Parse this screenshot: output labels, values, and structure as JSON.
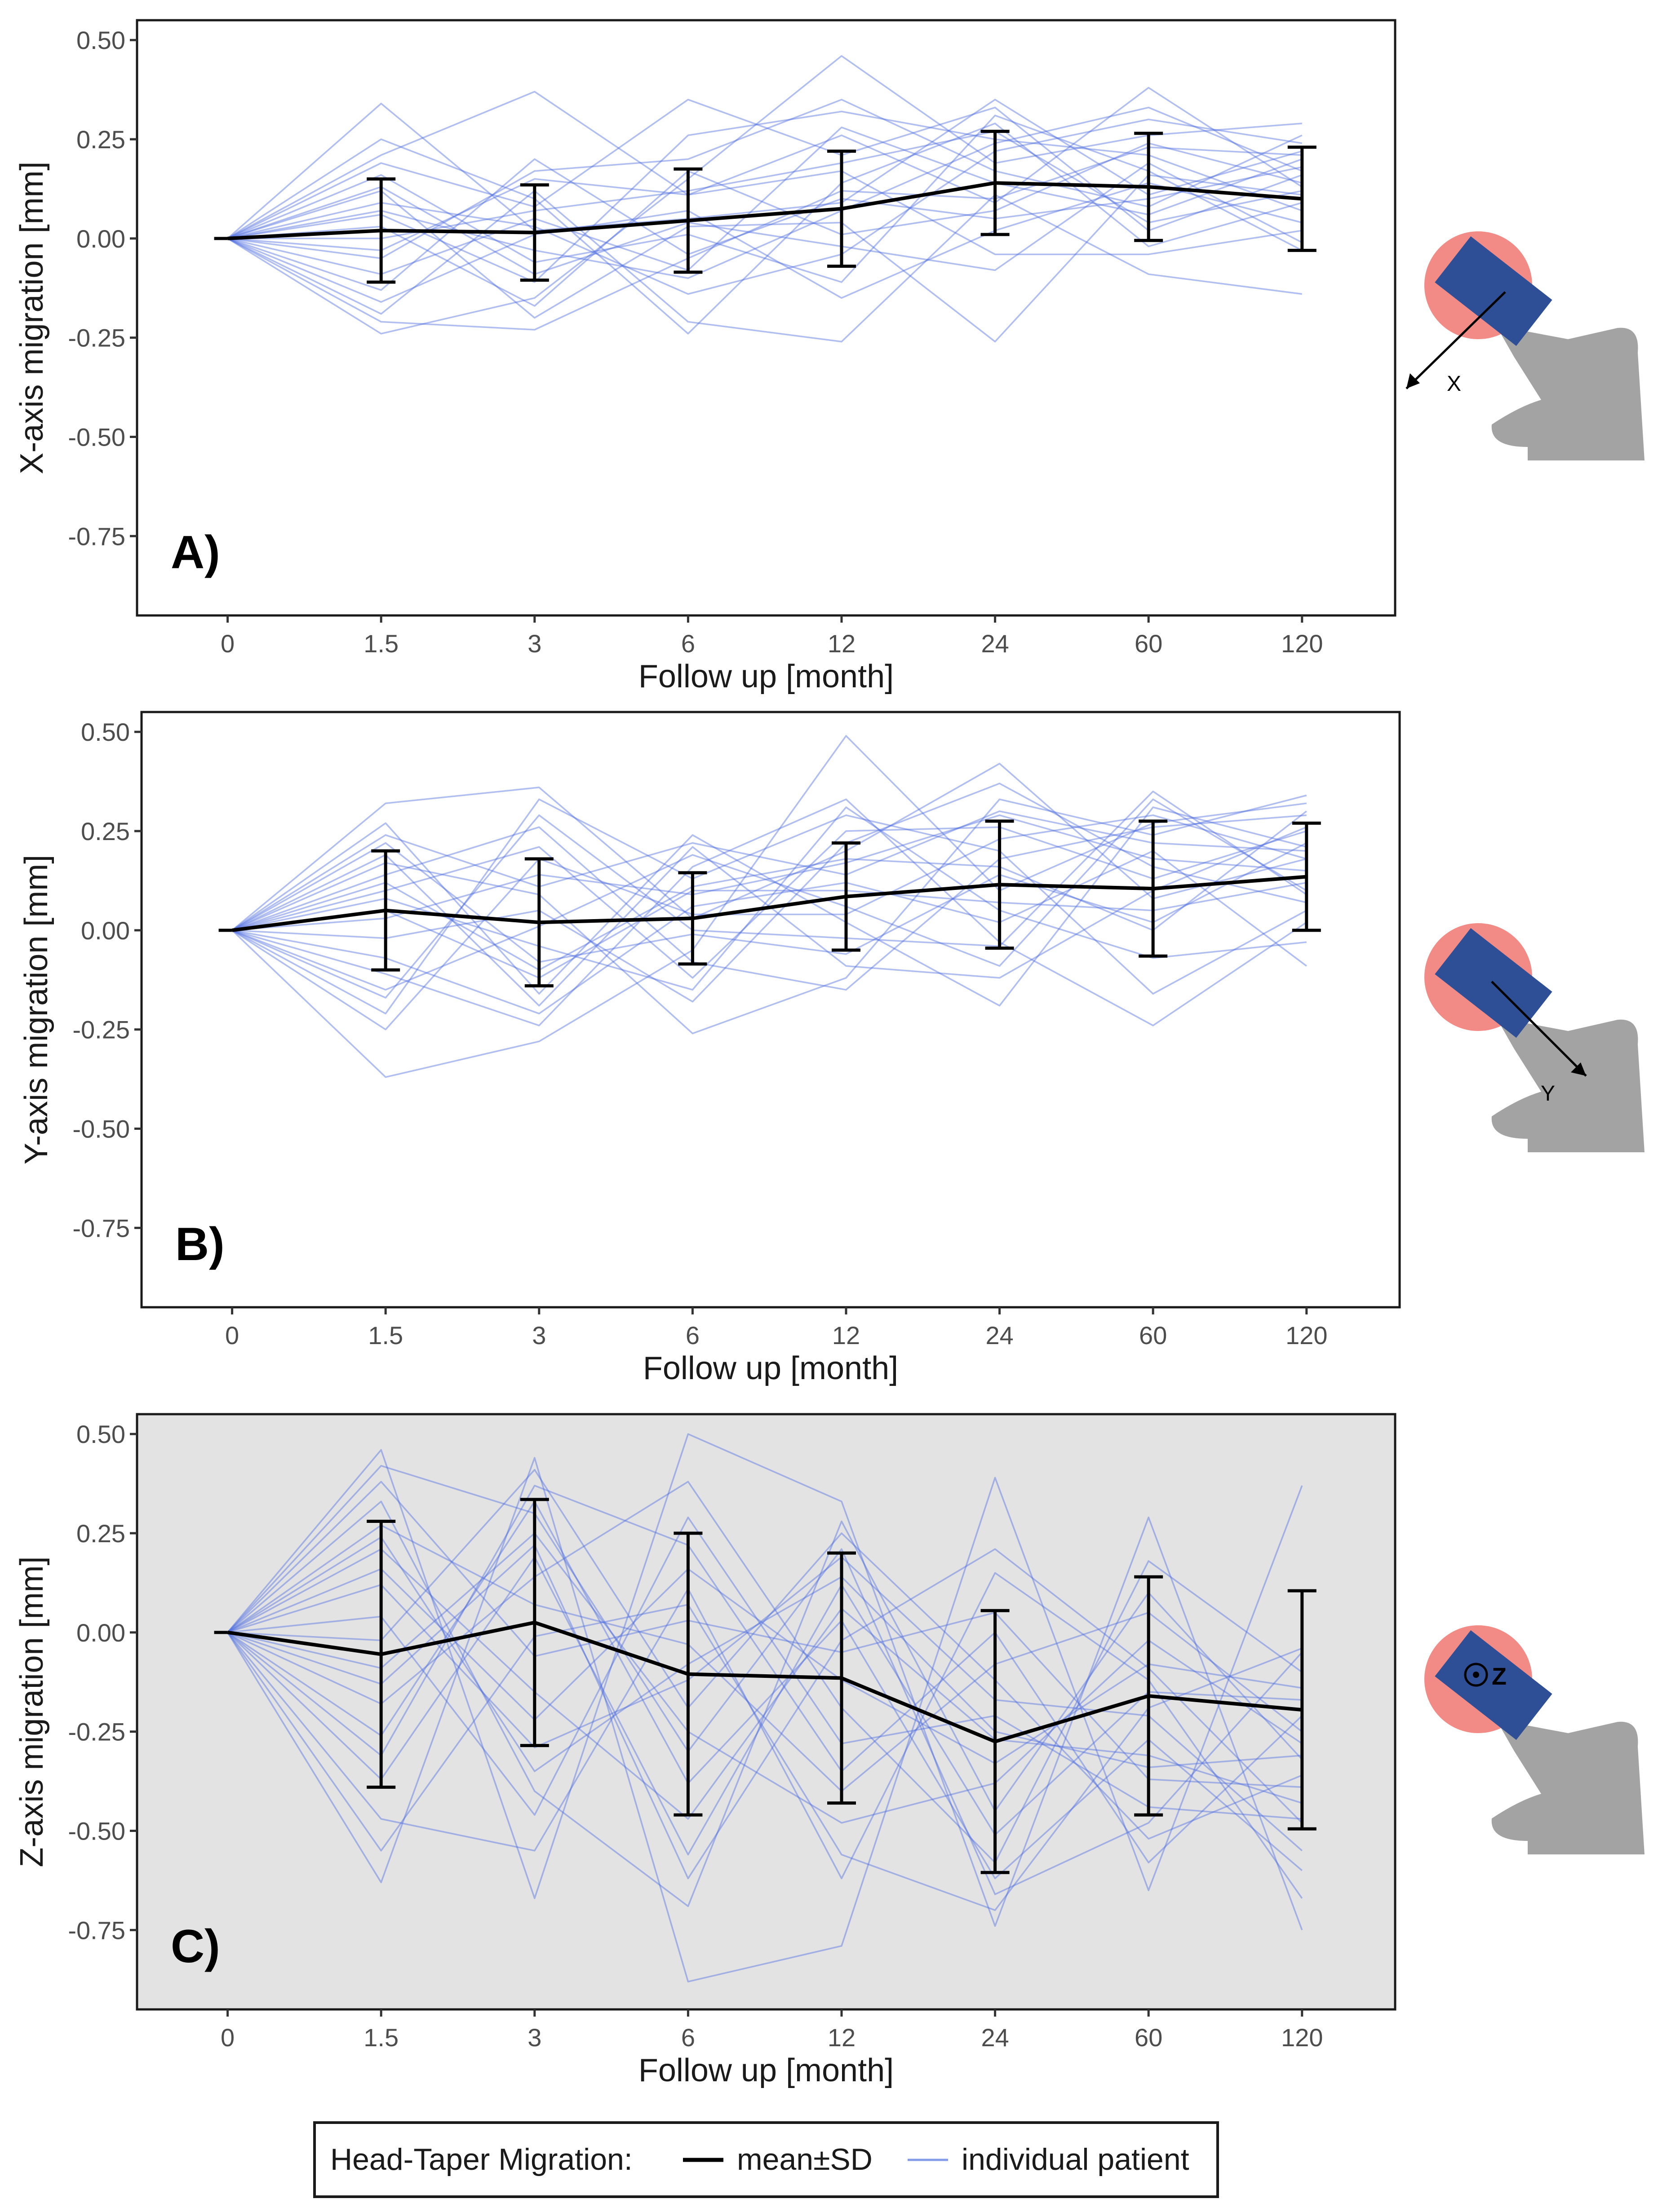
{
  "colors": {
    "mean_line": "#000000",
    "individual_line": "#4f6fe0",
    "panel_c_background": "#e3e3e3",
    "head_circle": "#f28b86",
    "taper_rect": "#2e4f96",
    "stem": "#a3a3a3"
  },
  "legend": {
    "title": "Head-Taper Migration:",
    "mean_label": "mean±SD",
    "individual_label": "individual patient"
  },
  "chart_data": [
    {
      "type": "line",
      "panel_label": "A)",
      "xlabel": "Follow up [month]",
      "ylabel": "X-axis migration [mm]",
      "categories": [
        "0",
        "1.5",
        "3",
        "6",
        "12",
        "24",
        "60",
        "120"
      ],
      "y_ticks": [
        "0.50",
        "0.25",
        "0.00",
        "-0.25",
        "-0.50",
        "-0.75"
      ],
      "ylim": [
        -0.95,
        0.55
      ],
      "background": "white",
      "axis_icon": "X",
      "series": [
        {
          "name": "mean±SD",
          "values": [
            0.0,
            0.02,
            0.015,
            0.045,
            0.075,
            0.14,
            0.13,
            0.1
          ],
          "sd": [
            0.0,
            0.13,
            0.12,
            0.13,
            0.145,
            0.13,
            0.135,
            0.13
          ]
        }
      ],
      "individual_patients": [
        [
          0,
          0.34,
          0.02,
          0.05,
          0.09,
          0.35,
          0.11,
          0.22
        ],
        [
          0,
          0.21,
          0.37,
          0.11,
          0.26,
          0.09,
          0.38,
          0.13
        ],
        [
          0,
          -0.24,
          -0.15,
          0.15,
          0.46,
          0.19,
          0.26,
          0.29
        ],
        [
          0,
          0.19,
          0.08,
          0.35,
          0.21,
          0.33,
          0.02,
          0.16
        ],
        [
          0,
          -0.19,
          0.12,
          -0.21,
          -0.26,
          0.11,
          -0.09,
          -0.14
        ],
        [
          0,
          0.12,
          -0.2,
          0.03,
          0.04,
          -0.26,
          0.16,
          0.11
        ],
        [
          0,
          -0.13,
          0.2,
          -0.04,
          0.1,
          0.05,
          0.1,
          0.18
        ],
        [
          0,
          0.06,
          -0.11,
          0.26,
          0.32,
          0.25,
          0.21,
          0.07
        ],
        [
          0,
          0.09,
          0.03,
          -0.14,
          -0.04,
          0.22,
          0.3,
          0.24
        ],
        [
          0,
          -0.03,
          0.15,
          0.11,
          0.17,
          -0.04,
          -0.04,
          0.02
        ],
        [
          0,
          0.16,
          -0.06,
          0.01,
          -0.11,
          0.31,
          0.17,
          -0.03
        ],
        [
          0,
          -0.09,
          0.05,
          -0.08,
          0.28,
          0.14,
          0.06,
          0.2
        ],
        [
          0,
          0.03,
          -0.17,
          0.17,
          0.01,
          0.07,
          0.24,
          0.14
        ],
        [
          0,
          0.25,
          0.1,
          -0.24,
          0.14,
          0.29,
          -0.02,
          0.09
        ],
        [
          0,
          -0.16,
          0.01,
          0.07,
          -0.15,
          0.02,
          0.14,
          0.04
        ],
        [
          0,
          0.07,
          -0.03,
          -0.1,
          0.07,
          0.24,
          0.33,
          0.17
        ],
        [
          0,
          -0.05,
          0.17,
          0.2,
          0.35,
          0.17,
          0.08,
          0.26
        ],
        [
          0,
          0.13,
          -0.09,
          0.04,
          -0.02,
          -0.08,
          0.19,
          -0.01
        ],
        [
          0,
          0.0,
          0.07,
          0.12,
          0.19,
          0.27,
          0.04,
          0.12
        ],
        [
          0,
          -0.21,
          -0.23,
          -0.05,
          0.12,
          0.1,
          0.23,
          0.21
        ]
      ]
    },
    {
      "type": "line",
      "panel_label": "B)",
      "xlabel": "Follow up [month]",
      "ylabel": "Y-axis migration [mm]",
      "categories": [
        "0",
        "1.5",
        "3",
        "6",
        "12",
        "24",
        "60",
        "120"
      ],
      "y_ticks": [
        "0.50",
        "0.25",
        "0.00",
        "-0.25",
        "-0.50",
        "-0.75"
      ],
      "ylim": [
        -0.95,
        0.55
      ],
      "background": "white",
      "axis_icon": "Y",
      "series": [
        {
          "name": "mean±SD",
          "values": [
            0.0,
            0.05,
            0.02,
            0.03,
            0.085,
            0.115,
            0.105,
            0.135
          ],
          "sd": [
            0.0,
            0.15,
            0.16,
            0.115,
            0.135,
            0.16,
            0.17,
            0.135
          ]
        }
      ],
      "individual_patients": [
        [
          0,
          -0.37,
          -0.28,
          -0.05,
          0.49,
          0.1,
          0.27,
          0.32
        ],
        [
          0,
          0.32,
          0.36,
          0.03,
          0.2,
          0.42,
          0.08,
          0.18
        ],
        [
          0,
          0.27,
          -0.16,
          0.24,
          0.02,
          -0.19,
          0.31,
          0.21
        ],
        [
          0,
          -0.21,
          0.33,
          0.13,
          0.29,
          0.2,
          -0.16,
          0.05
        ],
        [
          0,
          0.17,
          0.09,
          -0.26,
          -0.12,
          0.33,
          0.24,
          0.34
        ],
        [
          0,
          -0.07,
          -0.21,
          0.06,
          0.12,
          0.02,
          0.2,
          -0.09
        ],
        [
          0,
          0.1,
          0.21,
          -0.12,
          0.25,
          0.26,
          0.13,
          0.25
        ],
        [
          0,
          -0.15,
          0.01,
          0.19,
          0.06,
          -0.09,
          0.33,
          0.1
        ],
        [
          0,
          0.22,
          -0.08,
          -0.01,
          -0.06,
          0.14,
          0.02,
          0.22
        ],
        [
          0,
          0.03,
          0.14,
          0.09,
          0.17,
          0.29,
          0.18,
          0.15
        ],
        [
          0,
          -0.11,
          -0.24,
          0.16,
          0.33,
          -0.03,
          -0.24,
          0.02
        ],
        [
          0,
          0.14,
          0.26,
          -0.08,
          -0.15,
          0.18,
          0.26,
          0.29
        ],
        [
          0,
          0.05,
          -0.12,
          0.1,
          0.1,
          0.07,
          0.05,
          0.12
        ],
        [
          0,
          -0.02,
          0.05,
          -0.18,
          0.22,
          0.37,
          0.16,
          0.07
        ],
        [
          0,
          0.19,
          -0.19,
          0.21,
          -0.09,
          -0.12,
          0.1,
          0.26
        ],
        [
          0,
          -0.25,
          0.18,
          0.04,
          0.04,
          0.23,
          0.29,
          0.18
        ],
        [
          0,
          0.08,
          -0.04,
          -0.15,
          0.31,
          0.05,
          -0.07,
          -0.03
        ],
        [
          0,
          0.24,
          0.11,
          0.22,
          0.14,
          0.3,
          0.22,
          0.2
        ],
        [
          0,
          -0.17,
          0.29,
          0.0,
          -0.02,
          -0.04,
          0.35,
          0.09
        ],
        [
          0,
          0.12,
          -0.1,
          0.11,
          0.18,
          0.16,
          0.0,
          0.3
        ]
      ]
    },
    {
      "type": "line",
      "panel_label": "C)",
      "xlabel": "Follow up [month]",
      "ylabel": "Z-axis migration [mm]",
      "categories": [
        "0",
        "1.5",
        "3",
        "6",
        "12",
        "24",
        "60",
        "120"
      ],
      "y_ticks": [
        "0.50",
        "0.25",
        "0.00",
        "-0.25",
        "-0.50",
        "-0.75"
      ],
      "ylim": [
        -0.95,
        0.55
      ],
      "background": "grey",
      "axis_icon": "Z",
      "series": [
        {
          "name": "mean±SD",
          "values": [
            0.0,
            -0.055,
            0.025,
            -0.105,
            -0.115,
            -0.275,
            -0.16,
            -0.195
          ],
          "sd": [
            0.0,
            0.335,
            0.31,
            0.355,
            0.315,
            0.33,
            0.3,
            0.3
          ]
        }
      ],
      "individual_patients": [
        [
          0,
          0.46,
          -0.67,
          0.5,
          0.33,
          -0.74,
          0.29,
          -0.75
        ],
        [
          0,
          -0.63,
          0.44,
          -0.88,
          -0.79,
          0.39,
          -0.65,
          0.37
        ],
        [
          0,
          0.42,
          0.3,
          -0.3,
          0.21,
          -0.66,
          -0.48,
          -0.05
        ],
        [
          0,
          -0.47,
          -0.55,
          0.11,
          -0.62,
          0.15,
          -0.12,
          -0.67
        ],
        [
          0,
          0.33,
          -0.4,
          -0.69,
          0.28,
          -0.45,
          0.1,
          -0.32
        ],
        [
          0,
          -0.31,
          0.37,
          0.22,
          -0.35,
          0.0,
          -0.58,
          -0.21
        ],
        [
          0,
          0.21,
          -0.15,
          -0.47,
          0.06,
          -0.27,
          -0.31,
          -0.43
        ],
        [
          0,
          -0.18,
          0.14,
          0.38,
          -0.19,
          -0.58,
          0.18,
          -0.1
        ],
        [
          0,
          0.12,
          -0.29,
          -0.12,
          0.19,
          -0.17,
          -0.21,
          -0.55
        ],
        [
          0,
          -0.09,
          0.25,
          -0.25,
          -0.48,
          -0.38,
          -0.02,
          -0.28
        ],
        [
          0,
          0.38,
          -0.06,
          0.03,
          -0.05,
          0.05,
          -0.37,
          -0.39
        ],
        [
          0,
          -0.37,
          0.19,
          -0.56,
          0.12,
          -0.51,
          -0.15,
          -0.17
        ],
        [
          0,
          0.04,
          -0.46,
          0.29,
          -0.28,
          -0.21,
          -0.44,
          -0.47
        ],
        [
          0,
          0.27,
          0.07,
          -0.03,
          -0.4,
          -0.08,
          0.05,
          -0.25
        ],
        [
          0,
          -0.26,
          0.33,
          -0.38,
          0.03,
          -0.62,
          -0.27,
          -0.6
        ],
        [
          0,
          0.16,
          -0.22,
          0.16,
          -0.12,
          -0.33,
          -0.08,
          -0.14
        ],
        [
          0,
          -0.02,
          0.41,
          -0.19,
          0.25,
          -0.12,
          -0.52,
          -0.36
        ],
        [
          0,
          -0.55,
          -0.01,
          0.07,
          -0.56,
          -0.7,
          -0.19,
          -0.04
        ],
        [
          0,
          0.24,
          -0.35,
          -0.08,
          0.14,
          -0.25,
          -0.34,
          -0.31
        ],
        [
          0,
          -0.13,
          0.22,
          -0.62,
          -0.02,
          0.21,
          -0.09,
          -0.48
        ]
      ]
    }
  ]
}
